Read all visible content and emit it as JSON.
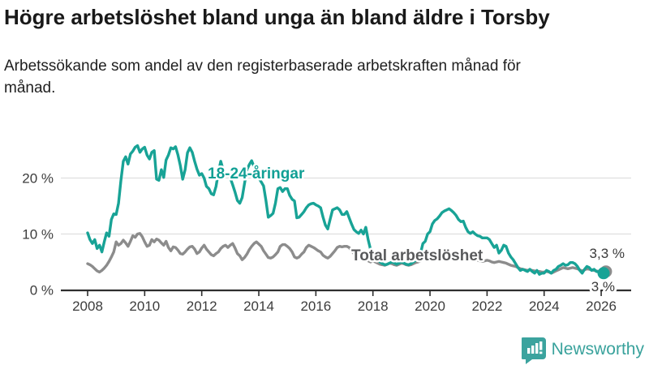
{
  "header": {
    "title": "Högre arbetslöshet bland unga än bland äldre i Torsby",
    "subtitle": "Arbetssökande som andel av den registerbaserade arbetskraften månad för månad."
  },
  "chart_data": {
    "type": "line",
    "title": "Högre arbetslöshet bland unga än bland äldre i Torsby",
    "subtitle": "Arbetssökande som andel av den registerbaserade arbetskraften månad för månad.",
    "x_unit": "month",
    "x_start": "2008-01",
    "xlim_years": [
      2008,
      2026.25
    ],
    "ylim": [
      0,
      27
    ],
    "grid": "horizontal",
    "yticks": [
      {
        "value": 0,
        "label": "0 %"
      },
      {
        "value": 10,
        "label": "10 %"
      },
      {
        "value": 20,
        "label": "20 %"
      }
    ],
    "xticks": [
      {
        "year": 2008,
        "label": "2008"
      },
      {
        "year": 2010,
        "label": "2010"
      },
      {
        "year": 2012,
        "label": "2012"
      },
      {
        "year": 2014,
        "label": "2014"
      },
      {
        "year": 2016,
        "label": "2016"
      },
      {
        "year": 2018,
        "label": "2018"
      },
      {
        "year": 2020,
        "label": "2020"
      },
      {
        "year": 2022,
        "label": "2022"
      },
      {
        "year": 2024,
        "label": "2024"
      },
      {
        "year": 2026,
        "label": "2026"
      }
    ],
    "colors": {
      "youth": "#18a396",
      "total": "#8c8c8c",
      "youth_label": "#11a095",
      "total_label": "#58595b",
      "axis": "#2e2e2e",
      "grid": "#e2e2e2",
      "tick_text": "#3c3c3c",
      "end_label_text": "#3a3a3a"
    },
    "series": [
      {
        "name": "18-24-åringar",
        "end_label": "3 %",
        "end_value": 3.0,
        "values": [
          10.2,
          9.0,
          8.3,
          9.0,
          7.4,
          8.0,
          6.8,
          8.6,
          10.2,
          9.6,
          12.6,
          13.6,
          13.5,
          15.5,
          19.5,
          23.0,
          23.8,
          22.5,
          24.3,
          24.8,
          25.5,
          25.8,
          24.6,
          25.2,
          25.5,
          24.1,
          23.4,
          24.6,
          24.9,
          19.8,
          19.6,
          21.5,
          20.1,
          23.2,
          24.1,
          25.4,
          25.2,
          25.6,
          24.1,
          22.2,
          19.8,
          21.5,
          24.5,
          25.4,
          24.6,
          23.0,
          21.6,
          20.5,
          20.8,
          20.0,
          18.5,
          18.1,
          17.2,
          17.0,
          18.5,
          21.0,
          23.0,
          21.5,
          20.8,
          20.8,
          20.0,
          18.8,
          17.5,
          16.0,
          15.5,
          16.5,
          19.0,
          21.5,
          22.4,
          23.1,
          22.0,
          20.5,
          20.0,
          19.3,
          18.6,
          16.0,
          13.0,
          13.3,
          13.7,
          15.5,
          18.1,
          18.3,
          17.6,
          18.1,
          18.1,
          16.9,
          16.2,
          15.9,
          12.9,
          13.0,
          13.5,
          14.0,
          14.7,
          15.2,
          15.4,
          15.5,
          15.2,
          15.0,
          14.7,
          13.0,
          11.6,
          10.9,
          12.6,
          14.3,
          14.5,
          14.7,
          14.3,
          13.5,
          13.5,
          14.0,
          12.9,
          11.8,
          10.8,
          10.4,
          10.1,
          10.7,
          10.0,
          11.2,
          9.0,
          7.2,
          6.8,
          6.0,
          5.5,
          5.0,
          4.7,
          4.5,
          4.6,
          4.8,
          5.0,
          4.8,
          4.6,
          4.8,
          5.0,
          4.8,
          4.6,
          4.5,
          4.7,
          5.0,
          5.3,
          5.8,
          6.5,
          8.3,
          8.7,
          10.0,
          10.4,
          11.8,
          12.4,
          12.7,
          13.2,
          13.8,
          14.1,
          14.3,
          14.5,
          14.2,
          13.8,
          13.3,
          12.6,
          12.2,
          12.3,
          11.2,
          10.4,
          10.1,
          10.4,
          10.0,
          9.7,
          9.6,
          9.3,
          9.3,
          9.3,
          9.0,
          8.3,
          7.6,
          8.0,
          6.6,
          7.1,
          8.0,
          7.8,
          6.6,
          5.9,
          5.4,
          4.7,
          4.0,
          3.5,
          3.7,
          3.5,
          3.3,
          3.7,
          3.3,
          3.0,
          3.5,
          2.8,
          3.0,
          3.0,
          3.5,
          3.3,
          3.0,
          3.5,
          3.7,
          4.2,
          4.4,
          4.7,
          4.4,
          4.5,
          4.9,
          4.9,
          4.7,
          4.2,
          3.5,
          3.0,
          3.7,
          4.2,
          4.0,
          3.5,
          3.7,
          3.3,
          3.2,
          3.1,
          3.0
        ]
      },
      {
        "name": "Total arbetslöshet",
        "end_label": "3,3 %",
        "end_value": 3.3,
        "values": [
          4.7,
          4.5,
          4.2,
          3.8,
          3.4,
          3.2,
          3.5,
          3.9,
          4.4,
          5.1,
          5.9,
          6.8,
          8.6,
          8.0,
          8.3,
          8.9,
          8.4,
          7.8,
          8.7,
          9.7,
          9.4,
          10.0,
          10.1,
          9.5,
          8.6,
          7.8,
          8.0,
          9.0,
          8.6,
          9.1,
          8.9,
          8.4,
          8.0,
          8.7,
          7.6,
          7.0,
          7.7,
          7.6,
          7.1,
          6.5,
          6.4,
          6.8,
          7.3,
          7.7,
          7.8,
          7.3,
          6.5,
          6.8,
          7.5,
          8.0,
          7.3,
          6.8,
          6.3,
          6.1,
          6.5,
          6.8,
          7.4,
          7.8,
          8.0,
          7.6,
          8.0,
          8.3,
          7.5,
          6.5,
          6.1,
          5.4,
          5.8,
          6.4,
          7.2,
          7.8,
          8.3,
          8.6,
          8.2,
          7.8,
          7.0,
          6.4,
          5.8,
          5.7,
          5.9,
          6.3,
          6.8,
          7.8,
          8.1,
          8.1,
          7.8,
          7.4,
          6.8,
          5.9,
          5.7,
          5.9,
          6.4,
          6.8,
          7.6,
          8.0,
          7.8,
          7.6,
          7.3,
          7.0,
          6.8,
          6.2,
          5.9,
          5.7,
          6.0,
          6.5,
          7.0,
          7.6,
          7.8,
          7.7,
          7.8,
          7.8,
          7.6,
          7.0,
          6.5,
          6.2,
          6.0,
          6.2,
          5.8,
          5.5,
          5.2,
          5.0,
          5.2,
          5.0,
          4.8,
          4.6,
          4.5,
          4.4,
          4.6,
          4.8,
          4.7,
          4.5,
          4.4,
          4.6,
          4.8,
          4.7,
          4.5,
          4.4,
          4.5,
          4.7,
          4.9,
          5.0,
          5.2,
          5.5,
          5.8,
          6.2,
          5.8,
          6.0,
          6.4,
          6.6,
          6.8,
          6.9,
          7.0,
          6.9,
          6.7,
          6.5,
          6.4,
          6.3,
          6.4,
          6.5,
          6.3,
          6.0,
          5.8,
          5.6,
          5.5,
          5.4,
          5.3,
          5.2,
          5.1,
          5.2,
          5.3,
          5.2,
          5.0,
          4.9,
          5.0,
          5.1,
          5.0,
          4.9,
          4.8,
          4.6,
          4.4,
          4.3,
          4.2,
          4.0,
          3.8,
          3.7,
          3.6,
          3.5,
          3.6,
          3.5,
          3.4,
          3.3,
          3.3,
          3.2,
          3.2,
          3.3,
          3.2,
          3.0,
          3.2,
          3.4,
          3.6,
          3.8,
          4.0,
          3.9,
          3.8,
          3.9,
          4.0,
          3.9,
          3.8,
          3.6,
          3.4,
          3.6,
          3.8,
          3.7,
          3.6,
          3.5,
          3.4,
          3.3,
          3.4,
          3.3,
          3.3
        ]
      }
    ]
  },
  "footer": {
    "logo_text": "Newsworthy"
  }
}
